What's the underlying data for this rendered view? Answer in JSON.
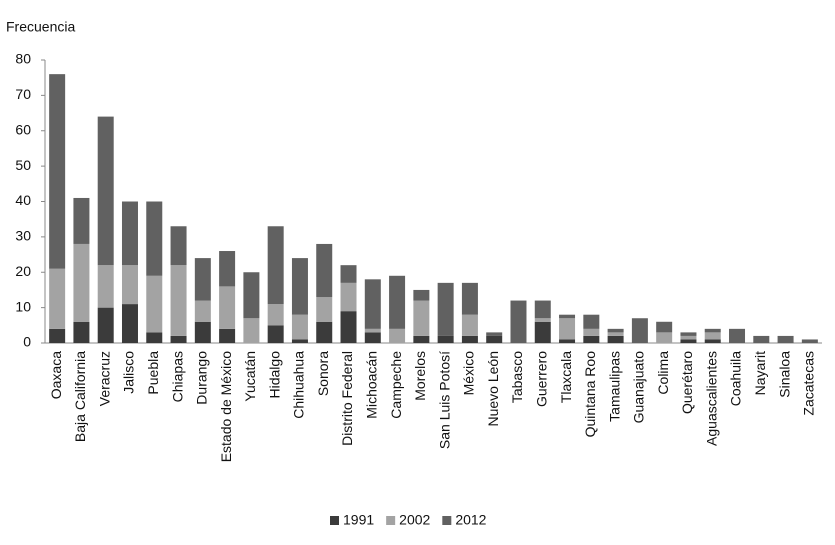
{
  "chart_data": {
    "type": "stacked-bar",
    "y_label": "Frecuencia",
    "categories": [
      "Oaxaca",
      "Baja California",
      "Veracruz",
      "Jalisco",
      "Puebla",
      "Chiapas",
      "Durango",
      "Estado de México",
      "Yucatán",
      "Hidalgo",
      "Chihuahua",
      "Sonora",
      "Distrito Federal",
      "Michoacán",
      "Campeche",
      "Morelos",
      "San Luis Potosí",
      "México",
      "Nuevo León",
      "Tabasco",
      "Guerrero",
      "Tlaxcala",
      "Quintana Roo",
      "Tamaulipas",
      "Guanajuato",
      "Colima",
      "Querétaro",
      "Aguascalientes",
      "Coahuila",
      "Nayarit",
      "Sinaloa",
      "Zacatecas"
    ],
    "series": [
      {
        "name": "1991",
        "color": "#3b3b3b",
        "values": [
          4,
          6,
          10,
          11,
          3,
          2,
          6,
          4,
          0,
          5,
          1,
          6,
          9,
          3,
          0,
          2,
          2,
          2,
          2,
          0,
          6,
          1,
          2,
          2,
          0,
          0,
          1,
          1,
          0,
          0,
          0,
          0
        ]
      },
      {
        "name": "2002",
        "color": "#a3a3a3",
        "values": [
          17,
          22,
          12,
          11,
          16,
          20,
          6,
          12,
          7,
          6,
          7,
          7,
          8,
          1,
          4,
          10,
          0,
          6,
          0,
          0,
          1,
          6,
          2,
          1,
          0,
          3,
          1,
          2,
          0,
          0,
          0,
          0
        ]
      },
      {
        "name": "2012",
        "color": "#616161",
        "values": [
          55,
          13,
          42,
          18,
          21,
          11,
          12,
          10,
          13,
          22,
          16,
          15,
          5,
          14,
          15,
          3,
          15,
          9,
          1,
          12,
          5,
          1,
          4,
          1,
          7,
          3,
          1,
          1,
          4,
          2,
          2,
          1
        ]
      }
    ],
    "ylim": [
      0,
      80
    ],
    "yticks": [
      0,
      10,
      20,
      30,
      40,
      50,
      60,
      70,
      80
    ]
  }
}
